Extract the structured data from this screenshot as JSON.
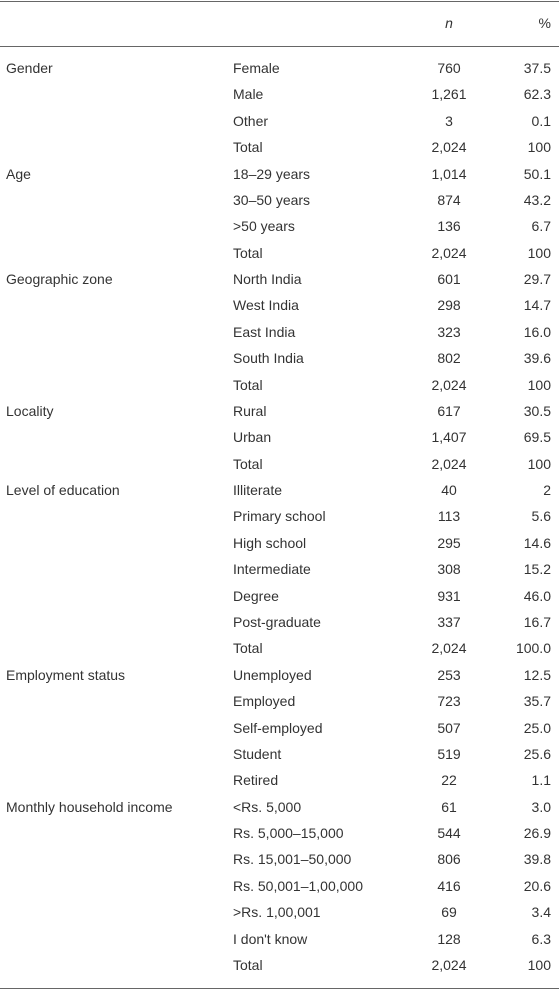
{
  "table": {
    "header": {
      "n": "n",
      "pct": "%"
    },
    "groups": [
      {
        "label": "Gender",
        "rows": [
          [
            "Female",
            "760",
            "37.5"
          ],
          [
            "Male",
            "1,261",
            "62.3"
          ],
          [
            "Other",
            "3",
            "0.1"
          ],
          [
            "Total",
            "2,024",
            "100"
          ]
        ]
      },
      {
        "label": "Age",
        "rows": [
          [
            "18–29 years",
            "1,014",
            "50.1"
          ],
          [
            "30–50 years",
            "874",
            "43.2"
          ],
          [
            ">50 years",
            "136",
            "6.7"
          ],
          [
            "Total",
            "2,024",
            "100"
          ]
        ]
      },
      {
        "label": "Geographic zone",
        "rows": [
          [
            "North India",
            "601",
            "29.7"
          ],
          [
            "West India",
            "298",
            "14.7"
          ],
          [
            "East India",
            "323",
            "16.0"
          ],
          [
            "South India",
            "802",
            "39.6"
          ],
          [
            "Total",
            "2,024",
            "100"
          ]
        ]
      },
      {
        "label": "Locality",
        "rows": [
          [
            "Rural",
            "617",
            "30.5"
          ],
          [
            "Urban",
            "1,407",
            "69.5"
          ],
          [
            "Total",
            "2,024",
            "100"
          ]
        ]
      },
      {
        "label": "Level of education",
        "rows": [
          [
            "Illiterate",
            "40",
            "2"
          ],
          [
            "Primary school",
            "113",
            "5.6"
          ],
          [
            "High school",
            "295",
            "14.6"
          ],
          [
            "Intermediate",
            "308",
            "15.2"
          ],
          [
            "Degree",
            "931",
            "46.0"
          ],
          [
            "Post-graduate",
            "337",
            "16.7"
          ],
          [
            "Total",
            "2,024",
            "100.0"
          ]
        ]
      },
      {
        "label": "Employment status",
        "rows": [
          [
            "Unemployed",
            "253",
            "12.5"
          ],
          [
            "Employed",
            "723",
            "35.7"
          ],
          [
            "Self-employed",
            "507",
            "25.0"
          ],
          [
            "Student",
            "519",
            "25.6"
          ],
          [
            "Retired",
            "22",
            "1.1"
          ]
        ]
      },
      {
        "label": "Monthly household income",
        "rows": [
          [
            "<Rs. 5,000",
            "61",
            "3.0"
          ],
          [
            "Rs. 5,000–15,000",
            "544",
            "26.9"
          ],
          [
            "Rs. 15,001–50,000",
            "806",
            "39.8"
          ],
          [
            "Rs. 50,001–1,00,000",
            "416",
            "20.6"
          ],
          [
            ">Rs. 1,00,001",
            "69",
            "3.4"
          ],
          [
            "I don't know",
            "128",
            "6.3"
          ],
          [
            "Total",
            "2,024",
            "100"
          ]
        ]
      }
    ]
  }
}
